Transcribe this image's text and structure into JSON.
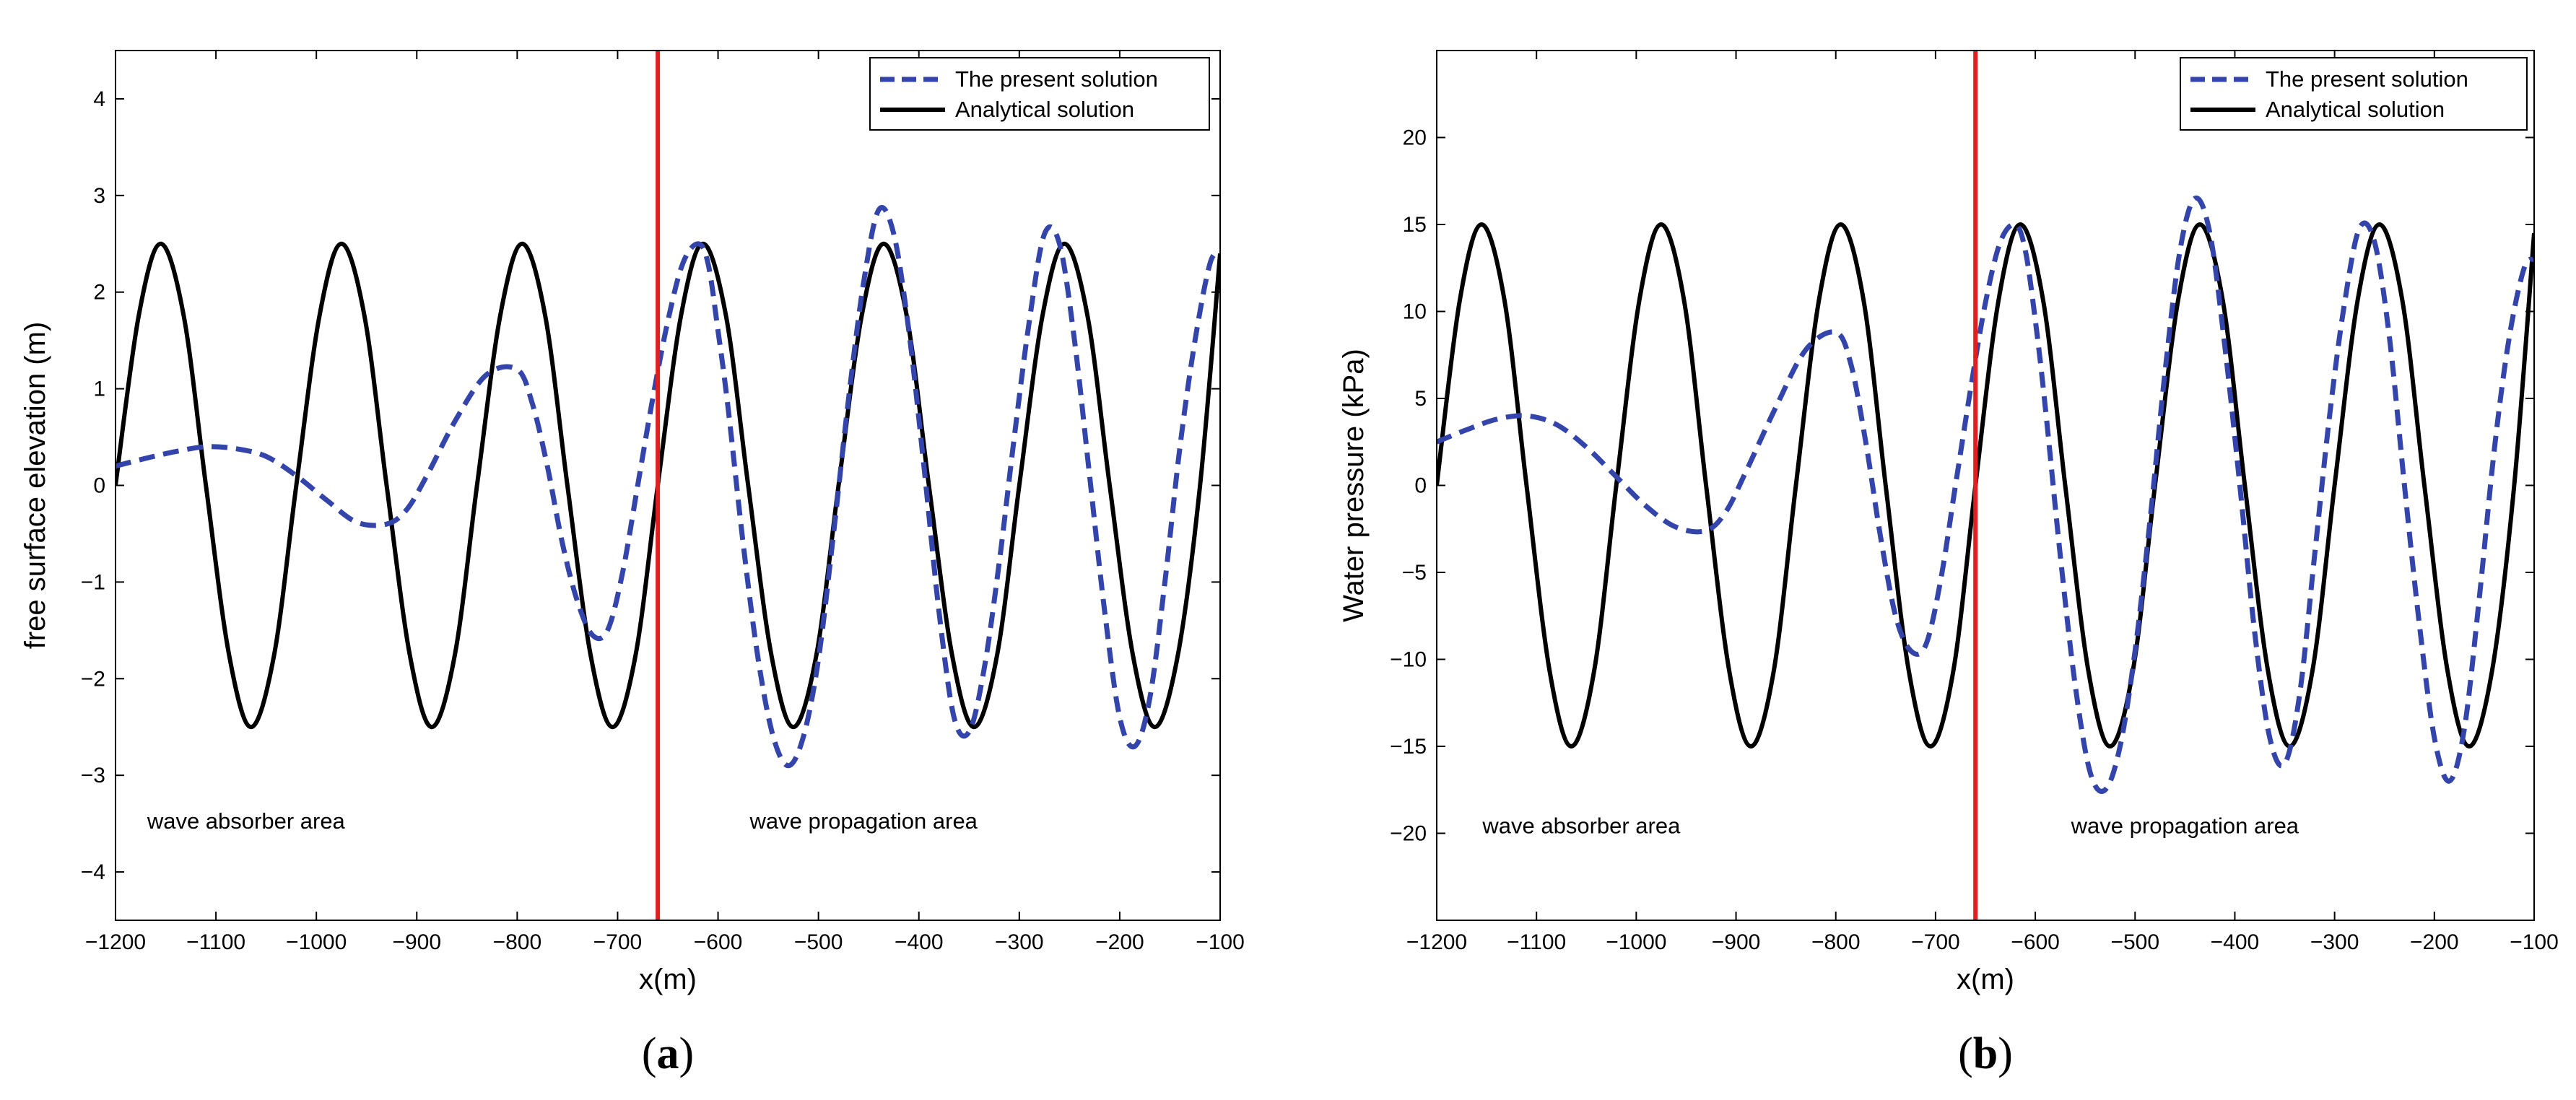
{
  "colors": {
    "present": "#3344aa",
    "analytical": "#000000",
    "divider": "#e02020",
    "frame": "#000000",
    "background": "#ffffff"
  },
  "chart_data": [
    {
      "type": "line",
      "panel": "a",
      "panel_label": {
        "open": "(",
        "letter": "a",
        "close": ")"
      },
      "xlabel": "x(m)",
      "ylabel": "free surface elevation (m)",
      "xlim": [
        -1200,
        -100
      ],
      "ylim": [
        -4.5,
        4.5
      ],
      "xticks": [
        -1200,
        -1100,
        -1000,
        -900,
        -800,
        -700,
        -600,
        -500,
        -400,
        -300,
        -200,
        -100
      ],
      "xtick_labels": [
        "−1200",
        "−1100",
        "−1000",
        "−900",
        "−800",
        "−700",
        "−600",
        "−500",
        "−400",
        "−300",
        "−200",
        "−100"
      ],
      "yticks": [
        -4,
        -3,
        -2,
        -1,
        0,
        1,
        2,
        3,
        4
      ],
      "ytick_labels": [
        "−4",
        "−3",
        "−2",
        "−1",
        "0",
        "1",
        "2",
        "3",
        "4"
      ],
      "divider_x": -660,
      "legend": {
        "position": "top-right",
        "entries": [
          "The present solution",
          "Analytical solution"
        ]
      },
      "annotations": [
        {
          "text": "wave absorber area",
          "x": -1070,
          "y": -3.55
        },
        {
          "text": "wave propagation area",
          "x": -455,
          "y": -3.55
        }
      ],
      "series": [
        {
          "name": "Analytical solution",
          "style": "solid",
          "x": [
            -1200,
            -1177,
            -1155,
            -1132,
            -1110,
            -1087,
            -1065,
            -1042,
            -1020,
            -997,
            -975,
            -952,
            -930,
            -907,
            -885,
            -862,
            -840,
            -817,
            -795,
            -772,
            -750,
            -727,
            -705,
            -682,
            -660,
            -637,
            -615,
            -592,
            -570,
            -547,
            -525,
            -502,
            -480,
            -457,
            -435,
            -412,
            -390,
            -367,
            -345,
            -322,
            -300,
            -277,
            -255,
            -232,
            -210,
            -187,
            -165,
            -142,
            -120,
            -100
          ],
          "y": [
            0.0,
            1.75,
            2.5,
            1.75,
            0.0,
            -1.75,
            -2.5,
            -1.75,
            0.0,
            1.75,
            2.5,
            1.75,
            0.0,
            -1.75,
            -2.5,
            -1.75,
            0.0,
            1.75,
            2.5,
            1.75,
            0.0,
            -1.75,
            -2.5,
            -1.75,
            0.0,
            1.75,
            2.5,
            1.75,
            0.0,
            -1.75,
            -2.5,
            -1.75,
            0.0,
            1.75,
            2.5,
            1.75,
            0.0,
            -1.75,
            -2.5,
            -1.75,
            0.0,
            1.75,
            2.5,
            1.75,
            0.0,
            -1.75,
            -2.5,
            -1.75,
            0.0,
            2.4
          ]
        },
        {
          "name": "The present solution",
          "style": "dashed",
          "x": [
            -1200,
            -1170,
            -1140,
            -1110,
            -1080,
            -1050,
            -1020,
            -990,
            -960,
            -930,
            -910,
            -890,
            -860,
            -830,
            -800,
            -785,
            -770,
            -755,
            -740,
            -725,
            -710,
            -695,
            -680,
            -665,
            -650,
            -635,
            -620,
            -610,
            -600,
            -590,
            -575,
            -560,
            -545,
            -530,
            -515,
            -500,
            -485,
            -470,
            -455,
            -440,
            -425,
            -410,
            -395,
            -380,
            -365,
            -350,
            -335,
            -320,
            -305,
            -290,
            -275,
            -260,
            -245,
            -230,
            -215,
            -200,
            -185,
            -170,
            -155,
            -140,
            -125,
            -110,
            -100
          ],
          "y": [
            0.2,
            0.28,
            0.35,
            0.4,
            0.38,
            0.3,
            0.1,
            -0.15,
            -0.38,
            -0.4,
            -0.25,
            0.1,
            0.7,
            1.15,
            1.2,
            0.85,
            0.2,
            -0.6,
            -1.2,
            -1.55,
            -1.5,
            -0.9,
            0.0,
            0.9,
            1.7,
            2.3,
            2.5,
            2.3,
            1.6,
            0.8,
            -0.6,
            -1.8,
            -2.6,
            -2.9,
            -2.6,
            -1.8,
            -0.5,
            0.9,
            2.1,
            2.85,
            2.6,
            1.6,
            0.2,
            -1.3,
            -2.4,
            -2.55,
            -1.9,
            -0.8,
            0.5,
            1.7,
            2.6,
            2.5,
            1.5,
            0.1,
            -1.3,
            -2.4,
            -2.7,
            -2.2,
            -1.0,
            0.4,
            1.5,
            2.3,
            2.4
          ]
        }
      ]
    },
    {
      "type": "line",
      "panel": "b",
      "panel_label": {
        "open": "(",
        "letter": "b",
        "close": ")"
      },
      "xlabel": "x(m)",
      "ylabel": "Water pressure (kPa)",
      "xlim": [
        -1200,
        -100
      ],
      "ylim": [
        -25,
        25
      ],
      "xticks": [
        -1200,
        -1100,
        -1000,
        -900,
        -800,
        -700,
        -600,
        -500,
        -400,
        -300,
        -200,
        -100
      ],
      "xtick_labels": [
        "−1200",
        "−1100",
        "−1000",
        "−900",
        "−800",
        "−700",
        "−600",
        "−500",
        "−400",
        "−300",
        "−200",
        "−100"
      ],
      "yticks": [
        -20,
        -15,
        -10,
        -5,
        0,
        5,
        10,
        15,
        20
      ],
      "ytick_labels": [
        "−20",
        "−15",
        "−10",
        "−5",
        "0",
        "5",
        "10",
        "15",
        "20"
      ],
      "divider_x": -660,
      "legend": {
        "position": "top-right",
        "entries": [
          "The present solution",
          "Analytical solution"
        ]
      },
      "annotations": [
        {
          "text": "wave absorber area",
          "x": -1055,
          "y": -20
        },
        {
          "text": "wave propagation area",
          "x": -450,
          "y": -20
        }
      ],
      "series": [
        {
          "name": "Analytical solution",
          "style": "solid",
          "x": [
            -1200,
            -1177,
            -1155,
            -1132,
            -1110,
            -1087,
            -1065,
            -1042,
            -1020,
            -997,
            -975,
            -952,
            -930,
            -907,
            -885,
            -862,
            -840,
            -817,
            -795,
            -772,
            -750,
            -727,
            -705,
            -682,
            -660,
            -637,
            -615,
            -592,
            -570,
            -547,
            -525,
            -502,
            -480,
            -457,
            -435,
            -412,
            -390,
            -367,
            -345,
            -322,
            -300,
            -277,
            -255,
            -232,
            -210,
            -187,
            -165,
            -142,
            -120,
            -100
          ],
          "y": [
            0.0,
            10.6,
            15.0,
            10.6,
            0.0,
            -10.6,
            -15.0,
            -10.6,
            0.0,
            10.6,
            15.0,
            10.6,
            0.0,
            -10.6,
            -15.0,
            -10.6,
            0.0,
            10.6,
            15.0,
            10.6,
            0.0,
            -10.6,
            -15.0,
            -10.6,
            0.0,
            10.6,
            15.0,
            10.6,
            0.0,
            -10.6,
            -15.0,
            -10.6,
            0.0,
            10.6,
            15.0,
            10.6,
            0.0,
            -10.6,
            -15.0,
            -10.6,
            0.0,
            10.6,
            15.0,
            10.6,
            0.0,
            -10.6,
            -15.0,
            -10.6,
            0.0,
            14.5
          ]
        },
        {
          "name": "The present solution",
          "style": "dashed",
          "x": [
            -1200,
            -1170,
            -1140,
            -1110,
            -1080,
            -1050,
            -1020,
            -990,
            -960,
            -930,
            -910,
            -890,
            -860,
            -830,
            -800,
            -785,
            -770,
            -755,
            -740,
            -725,
            -710,
            -695,
            -680,
            -665,
            -650,
            -635,
            -620,
            -610,
            -600,
            -590,
            -575,
            -560,
            -545,
            -530,
            -515,
            -500,
            -485,
            -470,
            -455,
            -440,
            -425,
            -410,
            -395,
            -380,
            -365,
            -350,
            -335,
            -320,
            -305,
            -290,
            -275,
            -260,
            -245,
            -230,
            -215,
            -200,
            -185,
            -170,
            -155,
            -140,
            -125,
            -110,
            -100
          ],
          "y": [
            2.5,
            3.2,
            3.8,
            4.0,
            3.5,
            2.2,
            0.5,
            -1.2,
            -2.4,
            -2.6,
            -1.5,
            0.8,
            4.5,
            7.8,
            8.8,
            7.0,
            2.5,
            -3.0,
            -7.5,
            -9.5,
            -9.2,
            -5.5,
            0.0,
            5.5,
            10.5,
            14.0,
            15.0,
            13.5,
            9.5,
            4.5,
            -4.0,
            -11.5,
            -16.5,
            -17.5,
            -15.0,
            -9.5,
            -2.0,
            6.5,
            13.5,
            16.5,
            14.5,
            8.0,
            0.0,
            -8.5,
            -14.5,
            -16.0,
            -12.0,
            -4.0,
            4.0,
            10.5,
            14.8,
            14.0,
            8.5,
            0.0,
            -8.0,
            -14.5,
            -17.0,
            -14.0,
            -6.5,
            2.0,
            8.5,
            12.5,
            13.0
          ]
        }
      ]
    }
  ]
}
